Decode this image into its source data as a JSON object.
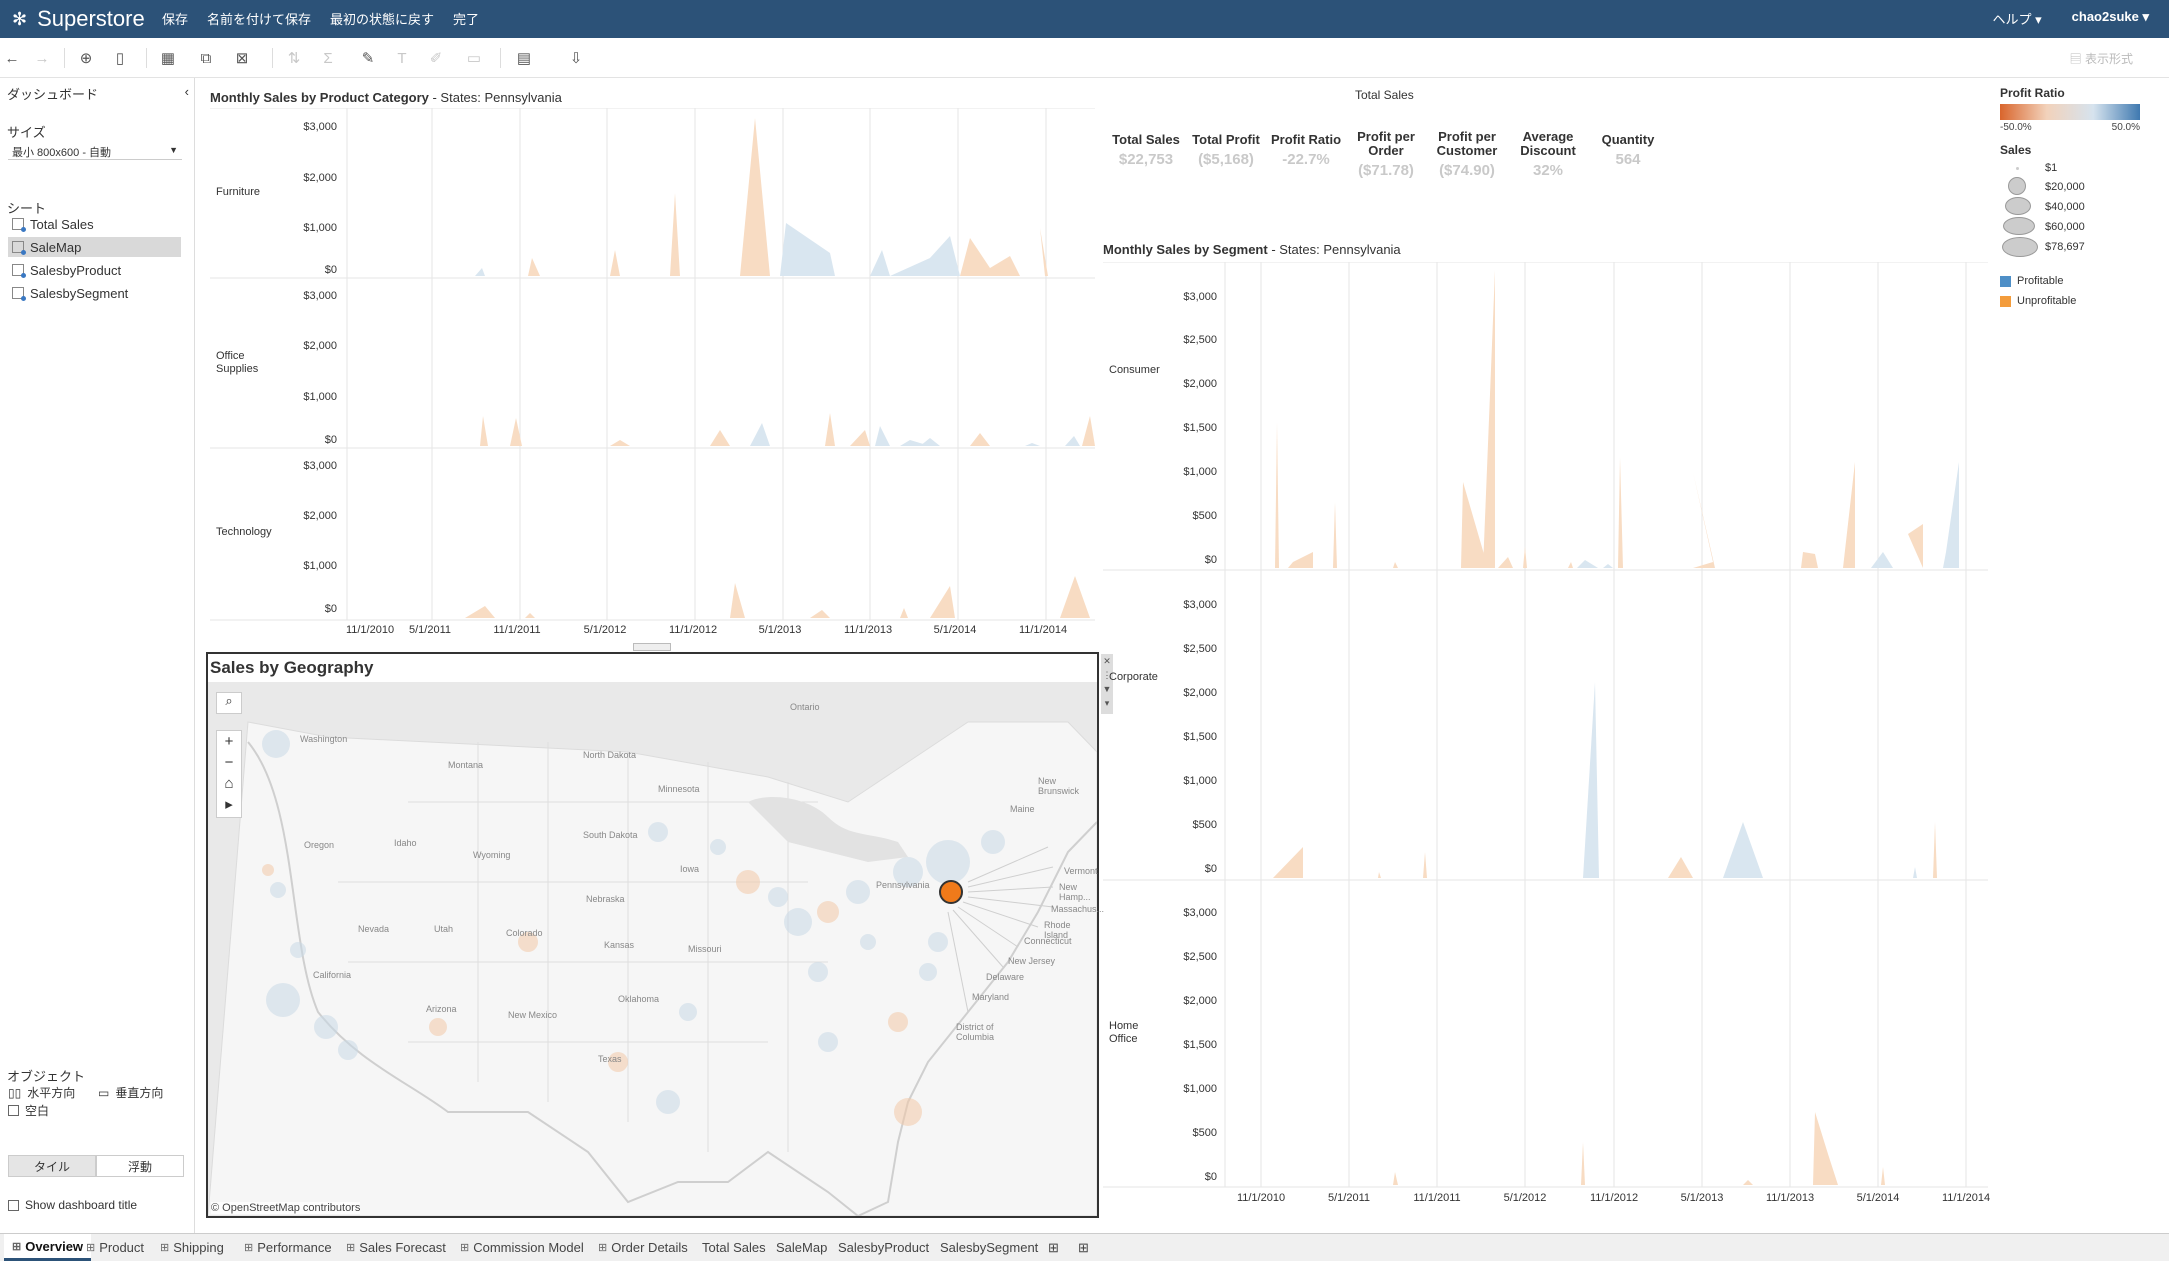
{
  "app": {
    "title": "Superstore",
    "menu": [
      "保存",
      "名前を付けて保存",
      "最初の状態に戻す",
      "完了"
    ],
    "help": "ヘルプ ▾",
    "user": "chao2suke ▾",
    "show_me": "表示形式"
  },
  "sidebar": {
    "title": "ダッシュボード",
    "size_label": "サイズ",
    "size_value": "最小 800x600 - 自動",
    "sheets_label": "シート",
    "sheets": [
      "Total Sales",
      "SaleMap",
      "SalesbyProduct",
      "SalesbySegment"
    ],
    "objects_label": "オブジェクト",
    "objects": [
      "水平方向",
      "垂直方向",
      "空白"
    ],
    "tile_label": "タイル",
    "float_label": "浮動",
    "show_title_label": "Show dashboard title"
  },
  "product_chart": {
    "title": "Monthly Sales by Product Category",
    "filter": " - States: Pennsylvania",
    "rows": [
      [
        "Furniture"
      ],
      [
        "Office",
        "Supplies"
      ],
      [
        "Technology"
      ]
    ],
    "y_ticks": [
      "$3,000",
      "$2,000",
      "$1,000",
      "$0"
    ],
    "x_ticks": [
      "11/1/2010",
      "5/1/2011",
      "11/1/2011",
      "5/1/2012",
      "11/1/2012",
      "5/1/2013",
      "11/1/2013",
      "5/1/2014",
      "11/1/2014"
    ]
  },
  "kpis": {
    "title": "Total Sales",
    "items": [
      {
        "label": "Total Sales",
        "value": "$22,753"
      },
      {
        "label": "Total Profit",
        "value": "($5,168)"
      },
      {
        "label": "Profit Ratio",
        "value": "-22.7%"
      },
      {
        "label": "Profit per Order",
        "value": "($71.78)"
      },
      {
        "label": "Profit per Customer",
        "value": "($74.90)"
      },
      {
        "label": "Average Discount",
        "value": "32%"
      },
      {
        "label": "Quantity",
        "value": "564"
      }
    ]
  },
  "segment_chart": {
    "title": "Monthly Sales by Segment",
    "filter": " - States: Pennsylvania",
    "rows": [
      [
        "Consumer"
      ],
      [
        "Corporate"
      ],
      [
        "Home",
        "Office"
      ]
    ],
    "y_ticks": [
      "$3,000",
      "$2,500",
      "$2,000",
      "$1,500",
      "$1,000",
      "$500",
      "$0"
    ],
    "x_ticks": [
      "11/1/2010",
      "5/1/2011",
      "11/1/2011",
      "5/1/2012",
      "11/1/2012",
      "5/1/2013",
      "11/1/2013",
      "5/1/2014",
      "11/1/2014"
    ]
  },
  "legend": {
    "profit_ratio_title": "Profit Ratio",
    "profit_ratio_min": "-50.0%",
    "profit_ratio_max": "50.0%",
    "sales_title": "Sales",
    "sales_sizes": [
      "$1",
      "$20,000",
      "$40,000",
      "$60,000",
      "$78,697"
    ],
    "profitable_label": "Profitable",
    "unprofitable_label": "Unprofitable",
    "colors": {
      "profitable": "#4e8fc7",
      "unprofitable": "#f39c3c"
    }
  },
  "map": {
    "title": "Sales by Geography",
    "attribution": "© OpenStreetMap contributors",
    "labels": [
      "Ontario",
      "Washington",
      "Montana",
      "North Dakota",
      "Minnesota",
      "South Dakota",
      "Wyoming",
      "Idaho",
      "Oregon",
      "Nebraska",
      "Iowa",
      "Nevada",
      "Utah",
      "Colorado",
      "Kansas",
      "Missouri",
      "California",
      "Arizona",
      "New Mexico",
      "Oklahoma",
      "Texas",
      "Pennsylvania",
      "Maine",
      "New Brunswick",
      "Vermont",
      "New Hamp...",
      "Massachus...",
      "Rhode Island",
      "Connecticut",
      "New Jersey",
      "Delaware",
      "Maryland",
      "District of Columbia"
    ]
  },
  "bottom_tabs": [
    "Overview",
    "Product",
    "Shipping",
    "Performance",
    "Sales Forecast",
    "Commission Model",
    "Order Details",
    "Total Sales",
    "SaleMap",
    "SalesbyProduct",
    "SalesbySegment"
  ]
}
